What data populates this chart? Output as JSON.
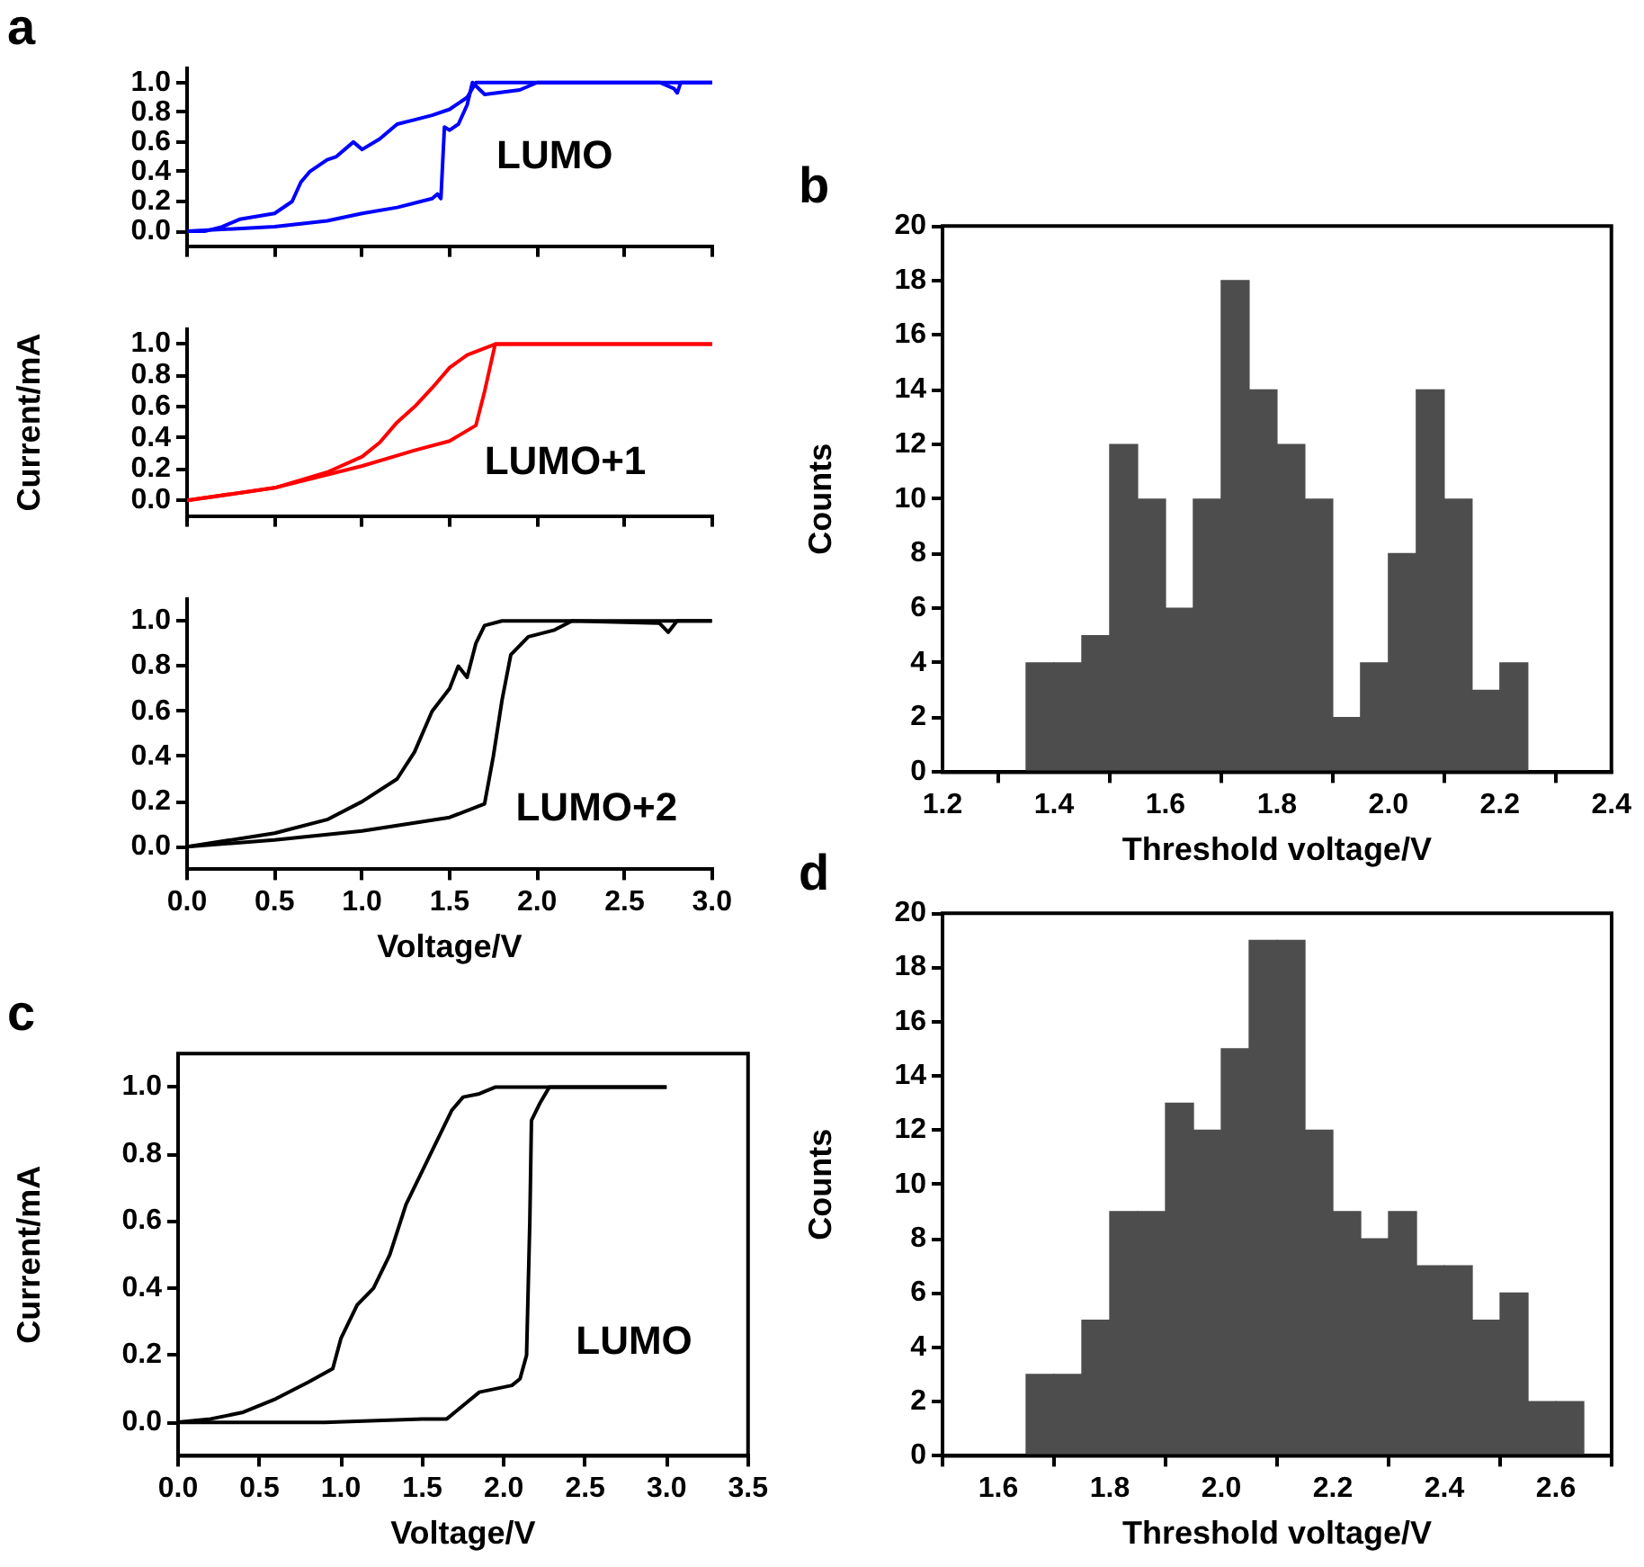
{
  "chart_data": [
    {
      "type": "line",
      "title": "a",
      "annotations": [
        "LUMO"
      ],
      "tick_labels": "y",
      "legend": false,
      "marker": "none",
      "line_style": "solid",
      "xlim": [
        0,
        3
      ],
      "xticks": [
        {
          "value": 0,
          "label": null
        },
        {
          "value": 0.5,
          "label": null
        },
        {
          "value": 1,
          "label": null
        },
        {
          "value": 1.5,
          "label": null
        },
        {
          "value": 2,
          "label": null
        },
        {
          "value": 2.5,
          "label": null
        },
        {
          "value": 3,
          "label": null
        }
      ],
      "ylim": [
        -0.1,
        1.1
      ],
      "yticks": [
        {
          "value": 0,
          "label": "0.0"
        },
        {
          "value": 0.2,
          "label": "0.2"
        },
        {
          "value": 0.4,
          "label": "0.4"
        },
        {
          "value": 0.6,
          "label": "0.6"
        },
        {
          "value": 0.8,
          "label": "0.8"
        },
        {
          "value": 1,
          "label": "1.0"
        }
      ],
      "series": [
        {
          "color": "#0000ff",
          "x": [
            0,
            0.5,
            0.8,
            1.0,
            1.2,
            1.4,
            1.43,
            1.45,
            1.47,
            1.5,
            1.55,
            1.6,
            1.63,
            1.7,
            1.9,
            2.0,
            3.0
          ],
          "values": [
            0,
            0.03,
            0.07,
            0.12,
            0.16,
            0.22,
            0.25,
            0.22,
            0.7,
            0.68,
            0.72,
            0.85,
            1.0,
            0.92,
            0.95,
            1.0,
            1.0
          ]
        },
        {
          "color": "#0000ff",
          "x": [
            3.0,
            2.82,
            2.8,
            2.78,
            2.7,
            1.65,
            1.6,
            1.5,
            1.4,
            1.3,
            1.2,
            1.1,
            1.0,
            0.95,
            0.85,
            0.8,
            0.7,
            0.65,
            0.6,
            0.5,
            0.4,
            0.3,
            0.2,
            0.1,
            0
          ],
          "values": [
            1.0,
            1.0,
            0.93,
            0.96,
            1.0,
            1.0,
            0.9,
            0.82,
            0.78,
            0.75,
            0.72,
            0.62,
            0.55,
            0.6,
            0.5,
            0.48,
            0.4,
            0.33,
            0.2,
            0.12,
            0.1,
            0.08,
            0.03,
            0.0,
            0
          ]
        }
      ]
    },
    {
      "type": "line",
      "annotations": [
        "LUMO+1"
      ],
      "ylabel": "Current/mA",
      "tick_labels": "y",
      "legend": false,
      "marker": "none",
      "line_style": "solid",
      "xlim": [
        0,
        3
      ],
      "xticks": [
        {
          "value": 0,
          "label": null
        },
        {
          "value": 0.5,
          "label": null
        },
        {
          "value": 1,
          "label": null
        },
        {
          "value": 1.5,
          "label": null
        },
        {
          "value": 2,
          "label": null
        },
        {
          "value": 2.5,
          "label": null
        },
        {
          "value": 3,
          "label": null
        }
      ],
      "ylim": [
        -0.1,
        1.1
      ],
      "yticks": [
        {
          "value": 0,
          "label": "0.0"
        },
        {
          "value": 0.2,
          "label": "0.2"
        },
        {
          "value": 0.4,
          "label": "0.4"
        },
        {
          "value": 0.6,
          "label": "0.6"
        },
        {
          "value": 0.8,
          "label": "0.8"
        },
        {
          "value": 1,
          "label": "1.0"
        }
      ],
      "series": [
        {
          "color": "#ff0000",
          "x": [
            0,
            0.5,
            1.0,
            1.3,
            1.5,
            1.65,
            1.7,
            1.76,
            3.0
          ],
          "values": [
            0,
            0.08,
            0.22,
            0.32,
            0.38,
            0.48,
            0.7,
            1.0,
            1.0
          ]
        },
        {
          "color": "#ff0000",
          "x": [
            3.0,
            1.76,
            1.6,
            1.5,
            1.4,
            1.3,
            1.2,
            1.1,
            1.0,
            0.8,
            0.5,
            0
          ],
          "values": [
            1.0,
            1.0,
            0.93,
            0.85,
            0.72,
            0.6,
            0.5,
            0.37,
            0.28,
            0.18,
            0.08,
            0
          ]
        }
      ]
    },
    {
      "type": "line",
      "annotations": [
        "LUMO+2"
      ],
      "xlabel": "Voltage/V",
      "legend": false,
      "marker": "none",
      "line_style": "solid",
      "xlim": [
        0,
        3
      ],
      "xticks": [
        {
          "value": 0,
          "label": "0.0"
        },
        {
          "value": 0.5,
          "label": "0.5"
        },
        {
          "value": 1,
          "label": "1.0"
        },
        {
          "value": 1.5,
          "label": "1.5"
        },
        {
          "value": 2,
          "label": "2.0"
        },
        {
          "value": 2.5,
          "label": "2.5"
        },
        {
          "value": 3,
          "label": "3.0"
        }
      ],
      "ylim": [
        -0.1,
        1.1
      ],
      "yticks": [
        {
          "value": 0,
          "label": "0.0"
        },
        {
          "value": 0.2,
          "label": "0.2"
        },
        {
          "value": 0.4,
          "label": "0.4"
        },
        {
          "value": 0.6,
          "label": "0.6"
        },
        {
          "value": 0.8,
          "label": "0.8"
        },
        {
          "value": 1,
          "label": "1.0"
        }
      ],
      "series": [
        {
          "color": "#000000",
          "x": [
            0,
            0.5,
            1.0,
            1.5,
            1.7,
            1.75,
            1.8,
            1.85,
            1.95,
            2.1,
            2.2,
            2.7,
            2.75,
            2.8,
            3.0
          ],
          "values": [
            0,
            0.03,
            0.07,
            0.13,
            0.19,
            0.4,
            0.65,
            0.85,
            0.93,
            0.96,
            1.0,
            0.99,
            0.95,
            1.0,
            1.0
          ]
        },
        {
          "color": "#000000",
          "x": [
            3.0,
            1.8,
            1.7,
            1.65,
            1.6,
            1.55,
            1.5,
            1.4,
            1.3,
            1.2,
            1.0,
            0.8,
            0.5,
            0
          ],
          "values": [
            1.0,
            1.0,
            0.98,
            0.9,
            0.75,
            0.8,
            0.7,
            0.6,
            0.42,
            0.3,
            0.2,
            0.12,
            0.06,
            0
          ]
        }
      ]
    },
    {
      "type": "histogram",
      "title": "b",
      "xlabel": "Threshold voltage/V",
      "ylabel": "Counts",
      "legend": false,
      "color": "#4d4d4d",
      "bins": [
        1.35,
        1.4,
        1.45,
        1.5,
        1.55,
        1.6,
        1.65,
        1.7,
        1.75,
        1.8,
        1.85,
        1.9,
        1.95,
        2.0,
        2.05,
        2.1,
        2.15,
        2.2,
        2.25
      ],
      "values": [
        4,
        4,
        5,
        12,
        10,
        6,
        10,
        18,
        14,
        12,
        10,
        2,
        4,
        8,
        14,
        10,
        3,
        4
      ],
      "xlim": [
        1.2,
        2.4
      ],
      "xticks": [
        1.2,
        1.4,
        1.6,
        1.8,
        {
          "value": 2,
          "label": "2.0"
        },
        2.2,
        2.4
      ],
      "ylim": [
        0,
        20
      ],
      "yticks": [
        0,
        2,
        4,
        6,
        8,
        10,
        12,
        14,
        16,
        18,
        20
      ]
    },
    {
      "type": "line",
      "title": "c",
      "annotations": [
        "LUMO"
      ],
      "xlabel": "Voltage/V",
      "ylabel": "Current/mA",
      "legend": false,
      "marker": "none",
      "line_style": "solid",
      "xlim": [
        0,
        3.5
      ],
      "xticks": [
        {
          "value": 0,
          "label": "0.0"
        },
        {
          "value": 0.5,
          "label": "0.5"
        },
        {
          "value": 1,
          "label": "1.0"
        },
        {
          "value": 1.5,
          "label": "1.5"
        },
        {
          "value": 2,
          "label": "2.0"
        },
        {
          "value": 2.5,
          "label": "2.5"
        },
        {
          "value": 3,
          "label": "3.0"
        },
        {
          "value": 3.5,
          "label": "3.5"
        }
      ],
      "ylim": [
        -0.1,
        1.1
      ],
      "yticks": [
        {
          "value": 0,
          "label": "0.0"
        },
        {
          "value": 0.2,
          "label": "0.2"
        },
        {
          "value": 0.4,
          "label": "0.4"
        },
        {
          "value": 0.6,
          "label": "0.6"
        },
        {
          "value": 0.8,
          "label": "0.8"
        },
        {
          "value": 1,
          "label": "1.0"
        }
      ],
      "series": [
        {
          "color": "#000000",
          "x": [
            0,
            0.9,
            1.5,
            1.65,
            1.75,
            1.85,
            1.95,
            2.05,
            2.1,
            2.14,
            2.16,
            2.17,
            2.22,
            2.28,
            3.0
          ],
          "values": [
            0,
            0,
            0.01,
            0.01,
            0.05,
            0.09,
            0.1,
            0.11,
            0.13,
            0.2,
            0.6,
            0.9,
            0.95,
            1.0,
            1.0
          ]
        },
        {
          "color": "#000000",
          "x": [
            3.0,
            1.95,
            1.85,
            1.75,
            1.68,
            1.6,
            1.5,
            1.4,
            1.3,
            1.2,
            1.1,
            1.0,
            0.95,
            0.8,
            0.6,
            0.4,
            0.2,
            0
          ],
          "values": [
            1.0,
            1.0,
            0.98,
            0.97,
            0.93,
            0.85,
            0.75,
            0.65,
            0.5,
            0.4,
            0.35,
            0.25,
            0.16,
            0.12,
            0.07,
            0.03,
            0.01,
            0
          ]
        }
      ]
    },
    {
      "type": "histogram",
      "title": "d",
      "xlabel": "Threshold voltage/V",
      "ylabel": "Counts",
      "legend": false,
      "color": "#4d4d4d",
      "bins": [
        1.65,
        1.7,
        1.75,
        1.8,
        1.85,
        1.9,
        1.95,
        2.0,
        2.05,
        2.1,
        2.15,
        2.2,
        2.25,
        2.3,
        2.35,
        2.4,
        2.45,
        2.5,
        2.55,
        2.6,
        2.65
      ],
      "values": [
        3,
        3,
        5,
        9,
        9,
        13,
        12,
        15,
        19,
        19,
        12,
        9,
        8,
        9,
        7,
        7,
        5,
        6,
        2,
        2
      ],
      "xlim": [
        1.5,
        2.7
      ],
      "xticks": [
        1.6,
        1.8,
        {
          "value": 2,
          "label": "2.0"
        },
        2.2,
        2.4,
        2.6
      ],
      "ylim": [
        0,
        20
      ],
      "yticks": [
        0,
        2,
        4,
        6,
        8,
        10,
        12,
        14,
        16,
        18,
        20
      ]
    }
  ]
}
